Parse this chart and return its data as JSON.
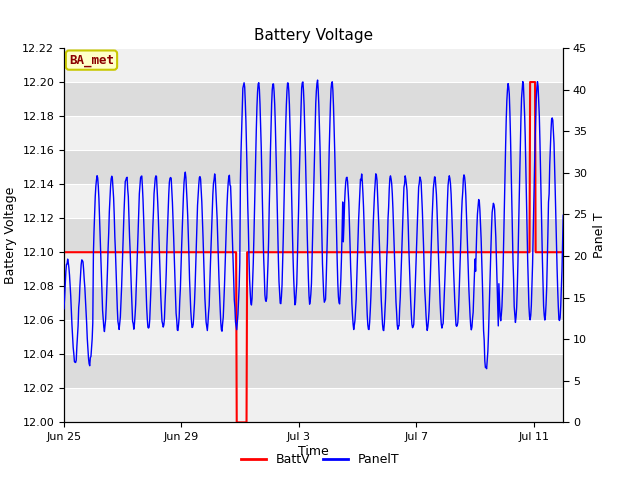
{
  "title": "Battery Voltage",
  "xlabel": "Time",
  "ylabel_left": "Battery Voltage",
  "ylabel_right": "Panel T",
  "ylim_left": [
    12.0,
    12.22
  ],
  "ylim_right": [
    0,
    45
  ],
  "yticks_left": [
    12.0,
    12.02,
    12.04,
    12.06,
    12.08,
    12.1,
    12.12,
    12.14,
    12.16,
    12.18,
    12.2,
    12.22
  ],
  "yticks_right": [
    0,
    5,
    10,
    15,
    20,
    25,
    30,
    35,
    40,
    45
  ],
  "xtick_positions": [
    0,
    4,
    8,
    12,
    16
  ],
  "xtick_labels": [
    "Jun 25",
    "Jun 29",
    "Jul 3",
    "Jul 7",
    "Jul 11"
  ],
  "xlim": [
    0,
    17
  ],
  "background_color": "#ffffff",
  "plot_bg_light": "#f0f0f0",
  "plot_bg_dark": "#dcdcdc",
  "grid_color": "#ffffff",
  "legend_items": [
    "BattV",
    "PanelT"
  ],
  "batt_color": "#ff0000",
  "panel_color": "#0000ff",
  "watermark_text": "BA_met",
  "watermark_bg": "#ffffc8",
  "watermark_border": "#c8c800",
  "title_fontsize": 11,
  "label_fontsize": 9,
  "tick_fontsize": 8
}
